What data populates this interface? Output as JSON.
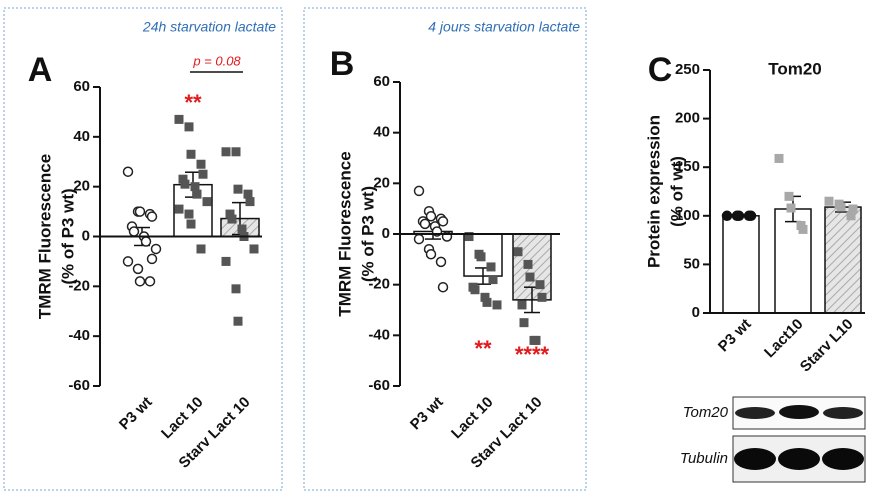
{
  "chart_data": [
    {
      "type": "bar",
      "panel": "A",
      "header": "24h starvation lactate",
      "y_label": [
        "TMRM Fluorescence",
        "(% of  P3 wt)"
      ],
      "categories": [
        "P3 wt",
        "Lact 10",
        "Starv Lact 10"
      ],
      "values": [
        0,
        20.8,
        7.2
      ],
      "errors": [
        3.6,
        5,
        6.4
      ],
      "points": [
        [
          26,
          10,
          10,
          9,
          8,
          4,
          2,
          0,
          -2,
          -5,
          -10,
          -13,
          -18,
          -18,
          -9
        ],
        [
          47,
          44,
          33,
          29,
          25,
          23,
          21,
          20,
          17,
          14,
          11,
          9,
          5,
          -5
        ],
        [
          34,
          34,
          19,
          17,
          14,
          9,
          7,
          3,
          0,
          -5,
          -10,
          -21,
          -34
        ]
      ],
      "bar_fills": [
        "#ffffff",
        "#ffffff",
        "hatch"
      ],
      "point_styles": [
        "open-circle",
        "square",
        "square"
      ],
      "point_colors": [
        "#222222",
        "#555555",
        "#555555"
      ],
      "ylim": [
        -60,
        60
      ],
      "yticks": [
        -60,
        -40,
        -20,
        0,
        20,
        40,
        60
      ],
      "annotations": [
        {
          "text": "**",
          "color": "#e31a1c"
        },
        {
          "text": "p = 0.08",
          "color": "#e31a1c"
        }
      ]
    },
    {
      "type": "bar",
      "panel": "B",
      "header": "4 jours starvation lactate",
      "y_label": [
        "TMRM Fluorescence",
        "(% of  P3 wt)"
      ],
      "categories": [
        "P3 wt",
        "Lact 10",
        "Starv Lact 10"
      ],
      "values": [
        1,
        -16.6,
        -26
      ],
      "errors": [
        3,
        3.2,
        5
      ],
      "points": [
        [
          17,
          9,
          7,
          6,
          5,
          5,
          4,
          3,
          1,
          -1,
          -2,
          -6,
          -8,
          -11,
          -21
        ],
        [
          -1,
          -8,
          -9,
          -13,
          -18,
          -21,
          -22,
          -25,
          -27,
          -28
        ],
        [
          -7,
          -12,
          -17,
          -20,
          -25,
          -28,
          -35,
          -42,
          -42
        ]
      ],
      "bar_fills": [
        "#ffffff",
        "#ffffff",
        "hatch"
      ],
      "point_styles": [
        "open-circle",
        "square",
        "square"
      ],
      "point_colors": [
        "#222222",
        "#555555",
        "#555555"
      ],
      "ylim": [
        -60,
        60
      ],
      "yticks": [
        -60,
        -40,
        -20,
        0,
        20,
        40,
        60
      ],
      "annotations": [
        {
          "text": "**",
          "color": "#e31a1c"
        },
        {
          "text": "****",
          "color": "#e31a1c"
        }
      ]
    },
    {
      "type": "bar",
      "panel": "C",
      "title": "Tom20",
      "y_label": [
        "Protein expression",
        "(% of wt)"
      ],
      "categories": [
        "P3 wt",
        "Lact10",
        "Starv L10"
      ],
      "values": [
        100,
        107,
        109
      ],
      "errors": [
        0,
        13,
        5
      ],
      "points": [
        [
          100,
          100,
          100,
          100,
          100
        ],
        [
          159,
          120,
          108,
          90,
          86
        ],
        [
          115,
          112,
          109,
          100,
          107
        ]
      ],
      "bar_fills": [
        "#ffffff",
        "#ffffff",
        "hatch"
      ],
      "point_styles": [
        "circle",
        "square",
        "square"
      ],
      "point_colors": [
        "#111111",
        "#a8a8a8",
        "#a8a8a8"
      ],
      "ylim": [
        0,
        250
      ],
      "yticks": [
        0,
        50,
        100,
        150,
        200,
        250
      ],
      "blot_labels": [
        "Tom20",
        "Tubulin"
      ]
    }
  ]
}
